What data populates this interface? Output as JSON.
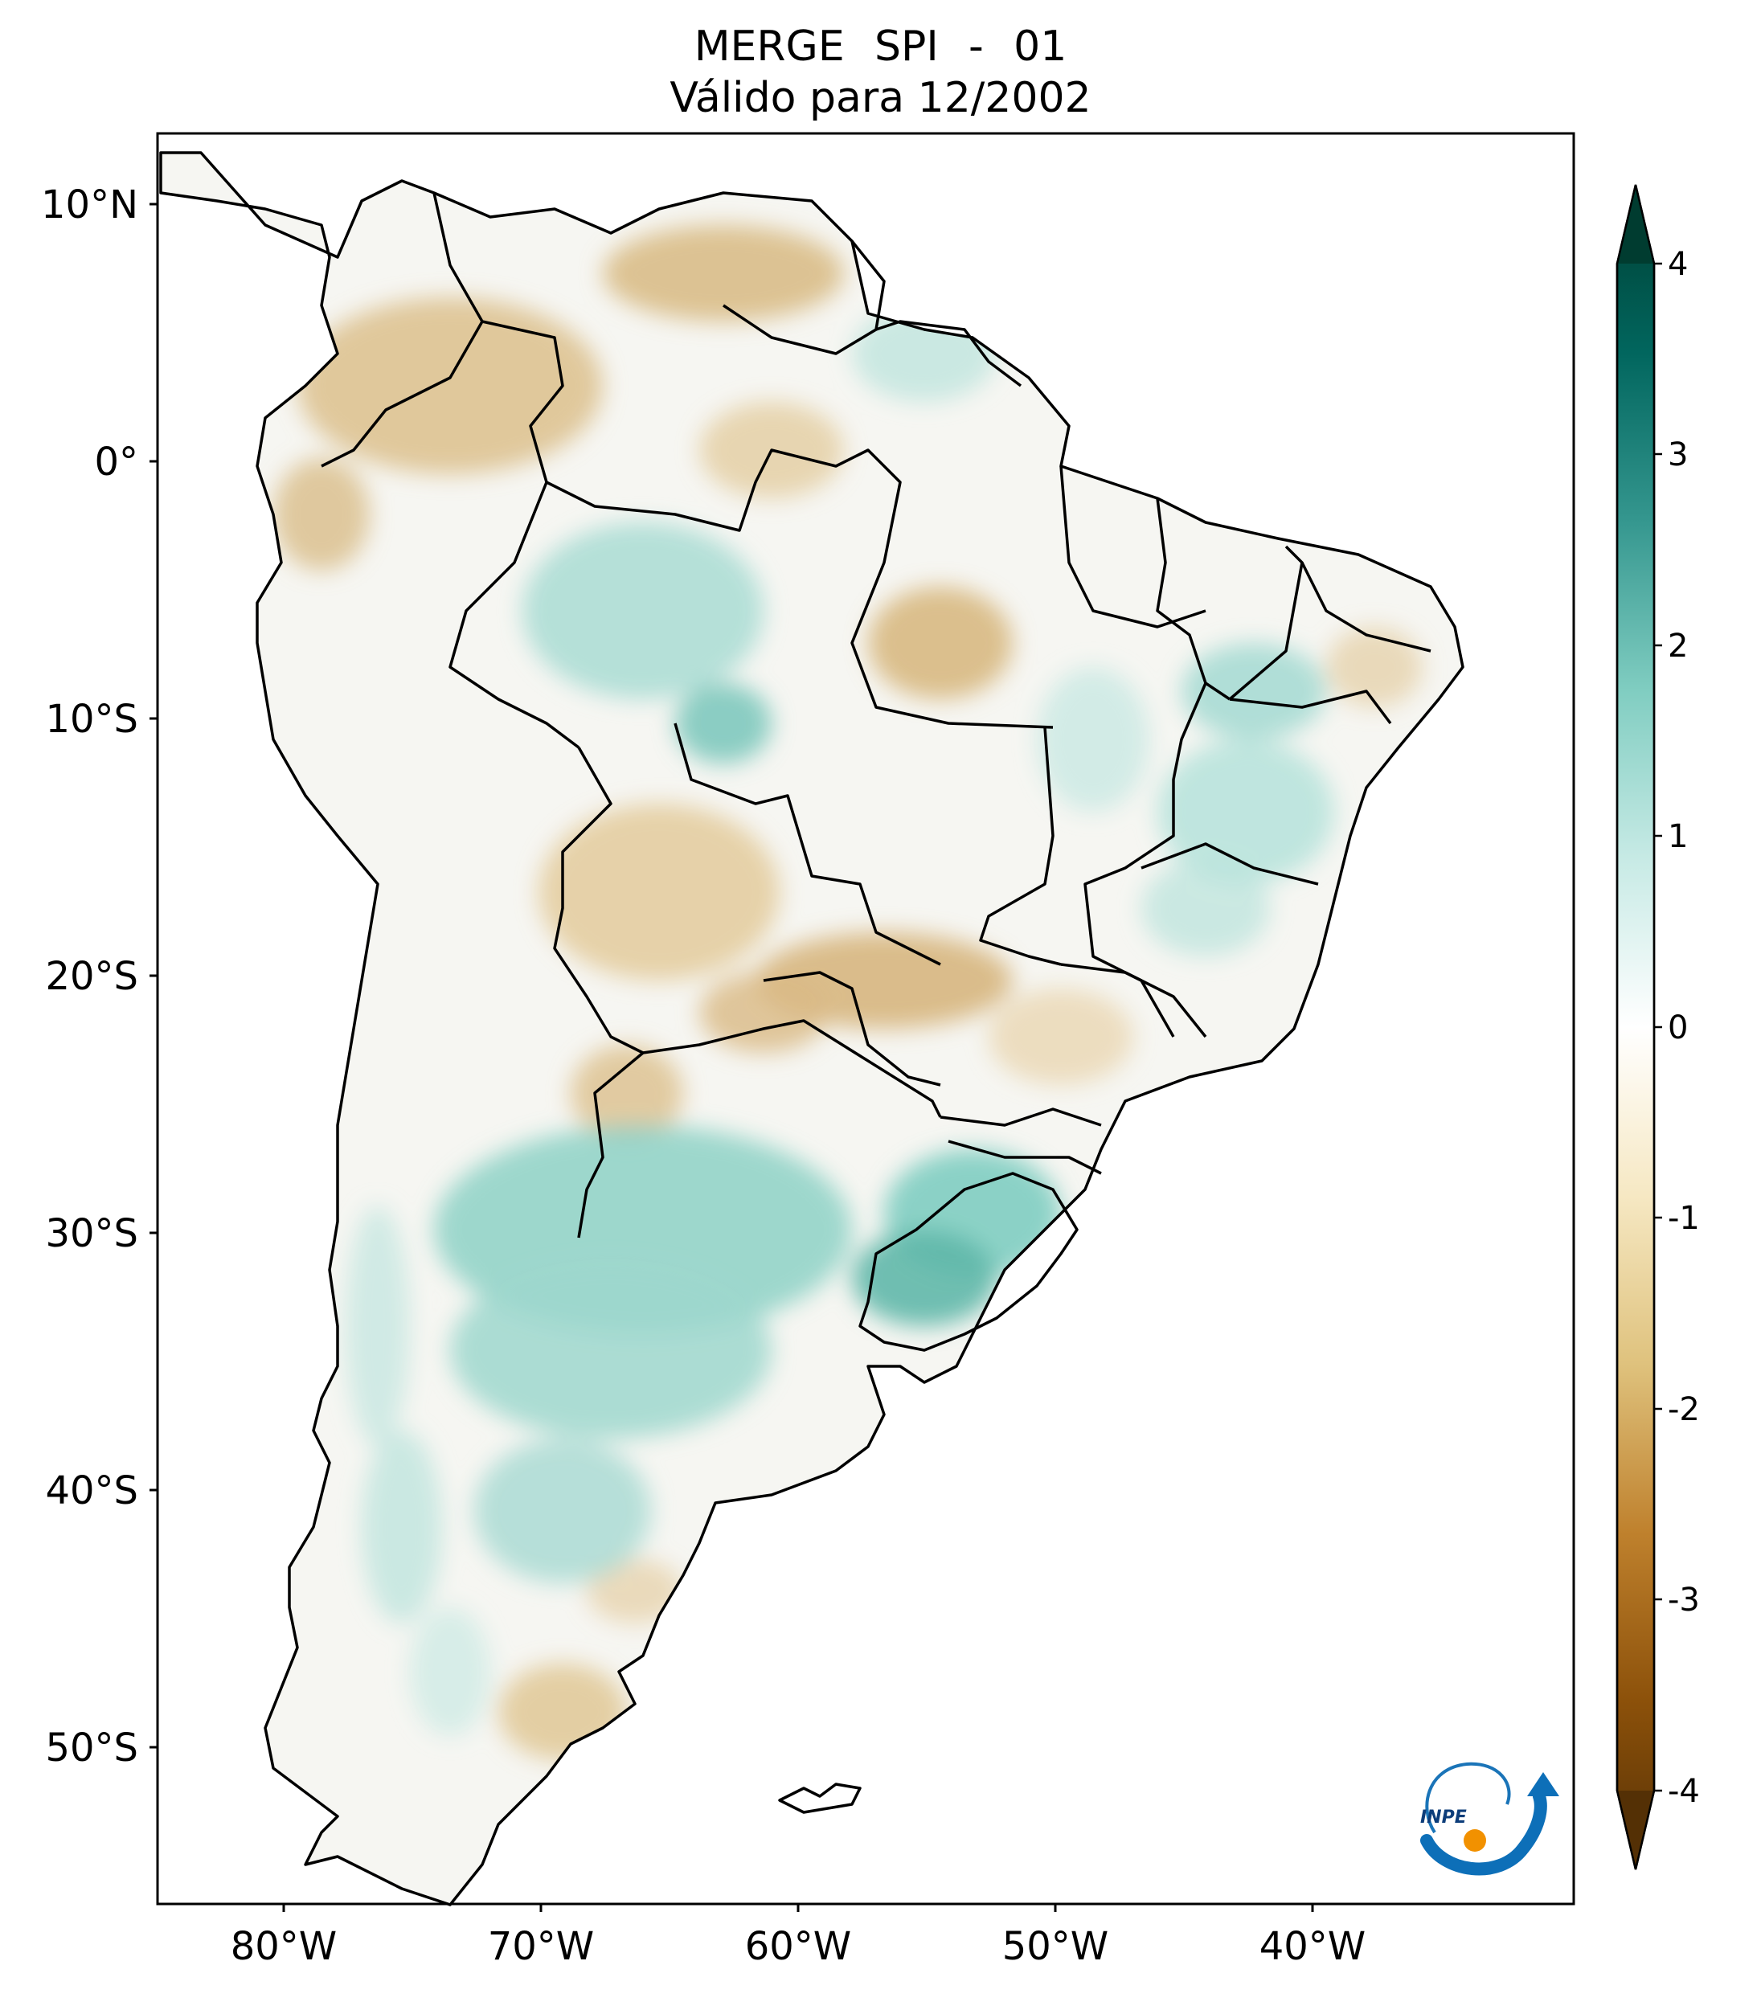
{
  "title": {
    "line1": "MERGE   SPI - 01",
    "line2": "Válido para 12/2002"
  },
  "map": {
    "lat_labels": [
      "10°N",
      "0°",
      "10°S",
      "20°S",
      "30°S",
      "40°S",
      "50°S"
    ],
    "lon_labels": [
      "80°W",
      "70°W",
      "60°W",
      "50°W",
      "40°W"
    ],
    "region": "South America"
  },
  "colorbar": {
    "ticks": [
      "4",
      "3",
      "2",
      "1",
      "0",
      "-1",
      "-2",
      "-3",
      "-4"
    ],
    "range": [
      -4,
      4
    ],
    "colormap": "BrBG",
    "extend": "both",
    "stops": [
      "#543005",
      "#8c510a",
      "#bf812d",
      "#dfc27d",
      "#f6e8c3",
      "#f5f5f5",
      "#c7eae5",
      "#80cdc1",
      "#35978f",
      "#01665e",
      "#003c30"
    ]
  },
  "logo": {
    "text": "INPE"
  }
}
